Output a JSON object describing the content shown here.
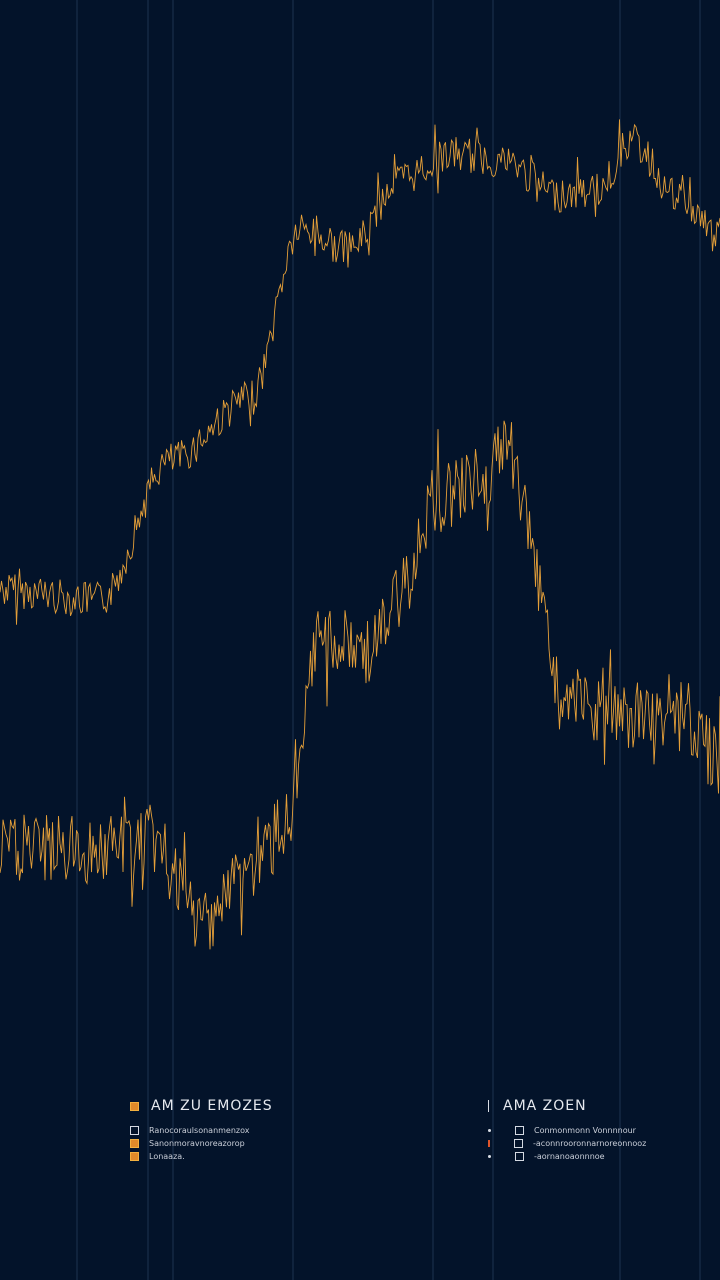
{
  "chart_data": {
    "type": "line",
    "title": "",
    "xlabel": "",
    "ylabel": "",
    "grid": "vertical",
    "x": [
      0,
      13.9,
      23.6,
      34.7,
      41.7,
      48.6,
      55.6,
      62.5,
      69.4,
      77.8,
      83.3,
      87.5,
      94.4,
      100
    ],
    "series": [
      {
        "color": "#f0a63a",
        "x": [
          0,
          13.9,
          23.6,
          34.7,
          41.7,
          48.6,
          55.6,
          62.5,
          69.4,
          77.8,
          83.3,
          87.5,
          94.4,
          100
        ],
        "values": [
          53.9,
          53.1,
          64,
          68.8,
          82,
          80.5,
          86,
          87.9,
          87.5,
          84.8,
          85.2,
          89,
          84.4,
          81.6
        ]
      },
      {
        "color": "#f0a63a",
        "x": [
          0,
          13.9,
          20.8,
          27.8,
          34.7,
          40.3,
          44.4,
          51.4,
          55.6,
          59.7,
          66.7,
          70.8,
          75,
          77.8,
          86.1,
          94.4,
          100
        ],
        "values": [
          33.6,
          33.6,
          34.4,
          28.1,
          32,
          35.9,
          50,
          49.2,
          53.1,
          60.9,
          62.5,
          64.8,
          54.7,
          45.3,
          43.8,
          44.5,
          40.6
        ]
      }
    ],
    "background": "#03132a"
  },
  "legend_left": {
    "title": "AM ZU EMOZES",
    "items": [
      "Ranocoraulsonanmenzox",
      "Sanonmoravnoreazorop",
      "Lonaaza."
    ]
  },
  "legend_right": {
    "title": "AMA ZOEN",
    "items": [
      "Conmonmonn Vonnnnour",
      "-aconnrooronnarnoreonnooz",
      "-aornanoaonnnoe"
    ]
  }
}
